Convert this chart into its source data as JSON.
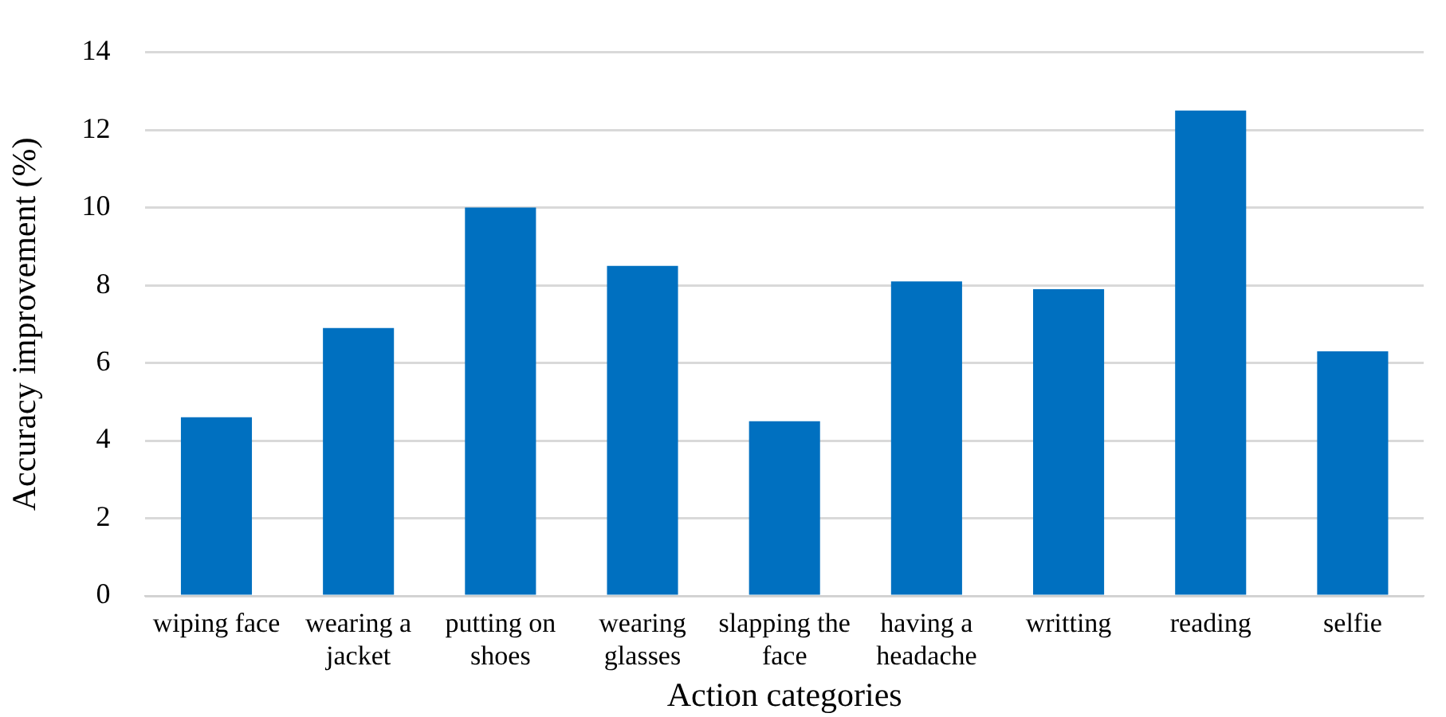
{
  "chart_data": {
    "type": "bar",
    "xlabel": "Action categories",
    "ylabel": "Accuracy improvement (%)",
    "categories": [
      "wiping face",
      "wearing a jacket",
      "putting on shoes",
      "wearing glasses",
      "slapping the face",
      "having a headache",
      "writting",
      "reading",
      "selfie"
    ],
    "values": [
      4.6,
      6.9,
      10.0,
      8.5,
      4.5,
      8.1,
      7.9,
      12.5,
      6.3
    ],
    "color": "#0070c0",
    "ylim": [
      0,
      14
    ],
    "yticks": [
      0,
      2,
      4,
      6,
      8,
      10,
      12,
      14
    ],
    "grid": "y"
  }
}
